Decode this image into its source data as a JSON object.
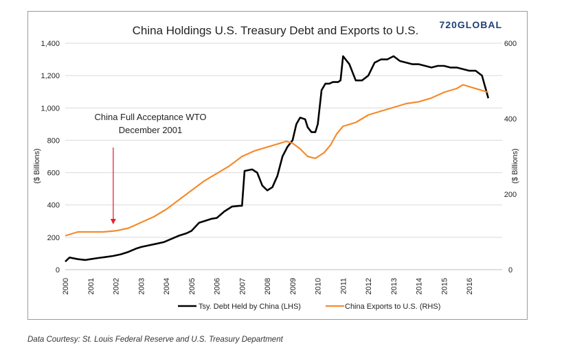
{
  "chart_data": {
    "type": "line",
    "title": "China Holdings U.S. Treasury Debt and Exports to U.S.",
    "logo_text": "720GLOBAL",
    "ylabel_left": "($ Billions)",
    "ylabel_right": "($ Billions)",
    "ylim_left": [
      0,
      1400
    ],
    "ylim_right": [
      0,
      600
    ],
    "yticks_left": [
      "0",
      "200",
      "400",
      "600",
      "800",
      "1,000",
      "1,200",
      "1,400"
    ],
    "yticks_left_values": [
      0,
      200,
      400,
      600,
      800,
      1000,
      1200,
      1400
    ],
    "yticks_right": [
      "0",
      "200",
      "400",
      "600"
    ],
    "yticks_right_values": [
      0,
      200,
      400,
      600
    ],
    "xlim": [
      2000,
      2017.3
    ],
    "xticks": [
      "2000",
      "2001",
      "2002",
      "2003",
      "2004",
      "2005",
      "2006",
      "2007",
      "2008",
      "2009",
      "2010",
      "2011",
      "2012",
      "2013",
      "2014",
      "2015",
      "2016"
    ],
    "xticks_values": [
      2000,
      2001,
      2002,
      2003,
      2004,
      2005,
      2006,
      2007,
      2008,
      2009,
      2010,
      2011,
      2012,
      2013,
      2014,
      2015,
      2016
    ],
    "grid": "horizontal",
    "legend_placement": "bottom",
    "annotation": {
      "lines": [
        "China Full Acceptance WTO",
        "December 2001"
      ],
      "arrow_x": 2001.9,
      "arrow_y_left": 280
    },
    "series": [
      {
        "name": "Tsy. Debt Held by China (LHS)",
        "axis": "left",
        "color": "#000000",
        "x": [
          2000.0,
          2000.17,
          2000.5,
          2000.8,
          2001.0,
          2001.3,
          2001.6,
          2001.9,
          2002.2,
          2002.5,
          2002.8,
          2003.0,
          2003.3,
          2003.6,
          2003.9,
          2004.2,
          2004.5,
          2004.8,
          2005.0,
          2005.3,
          2005.6,
          2005.8,
          2006.0,
          2006.3,
          2006.6,
          2006.9,
          2007.0,
          2007.1,
          2007.25,
          2007.4,
          2007.6,
          2007.8,
          2008.0,
          2008.2,
          2008.4,
          2008.6,
          2008.8,
          2009.0,
          2009.15,
          2009.3,
          2009.5,
          2009.6,
          2009.75,
          2009.9,
          2010.0,
          2010.15,
          2010.3,
          2010.45,
          2010.6,
          2010.8,
          2010.9,
          2011.0,
          2011.25,
          2011.5,
          2011.75,
          2012.0,
          2012.25,
          2012.5,
          2012.75,
          2013.0,
          2013.25,
          2013.5,
          2013.75,
          2014.0,
          2014.25,
          2014.5,
          2014.75,
          2015.0,
          2015.25,
          2015.5,
          2015.75,
          2016.0,
          2016.25,
          2016.5,
          2016.75
        ],
        "values": [
          50,
          75,
          65,
          60,
          65,
          72,
          78,
          85,
          95,
          110,
          130,
          140,
          150,
          160,
          170,
          190,
          210,
          225,
          240,
          290,
          305,
          315,
          320,
          360,
          390,
          395,
          395,
          610,
          615,
          620,
          600,
          520,
          490,
          510,
          580,
          700,
          760,
          800,
          900,
          940,
          930,
          880,
          850,
          850,
          900,
          1110,
          1150,
          1150,
          1160,
          1160,
          1170,
          1320,
          1270,
          1170,
          1170,
          1200,
          1280,
          1300,
          1300,
          1320,
          1290,
          1280,
          1270,
          1270,
          1260,
          1250,
          1260,
          1260,
          1250,
          1250,
          1240,
          1230,
          1230,
          1200,
          1060
        ]
      },
      {
        "name": "China Exports to U.S. (RHS)",
        "axis": "right",
        "color": "#f58a2b",
        "x": [
          2000.0,
          2000.5,
          2001.0,
          2001.5,
          2002.0,
          2002.5,
          2003.0,
          2003.5,
          2004.0,
          2004.5,
          2005.0,
          2005.5,
          2006.0,
          2006.5,
          2007.0,
          2007.5,
          2008.0,
          2008.5,
          2008.75,
          2009.0,
          2009.3,
          2009.6,
          2009.9,
          2010.25,
          2010.5,
          2010.75,
          2011.0,
          2011.5,
          2012.0,
          2012.5,
          2013.0,
          2013.5,
          2014.0,
          2014.5,
          2015.0,
          2015.5,
          2015.75,
          2016.0,
          2016.5,
          2016.75
        ],
        "values": [
          90,
          100,
          100,
          100,
          103,
          110,
          125,
          140,
          160,
          185,
          210,
          235,
          255,
          275,
          300,
          315,
          325,
          335,
          340,
          335,
          320,
          300,
          295,
          310,
          330,
          360,
          380,
          390,
          410,
          420,
          430,
          440,
          445,
          455,
          470,
          480,
          490,
          485,
          475,
          470
        ]
      }
    ]
  },
  "caption": "Data Courtesy: St. Louis Federal Reserve and U.S. Treasury Department"
}
